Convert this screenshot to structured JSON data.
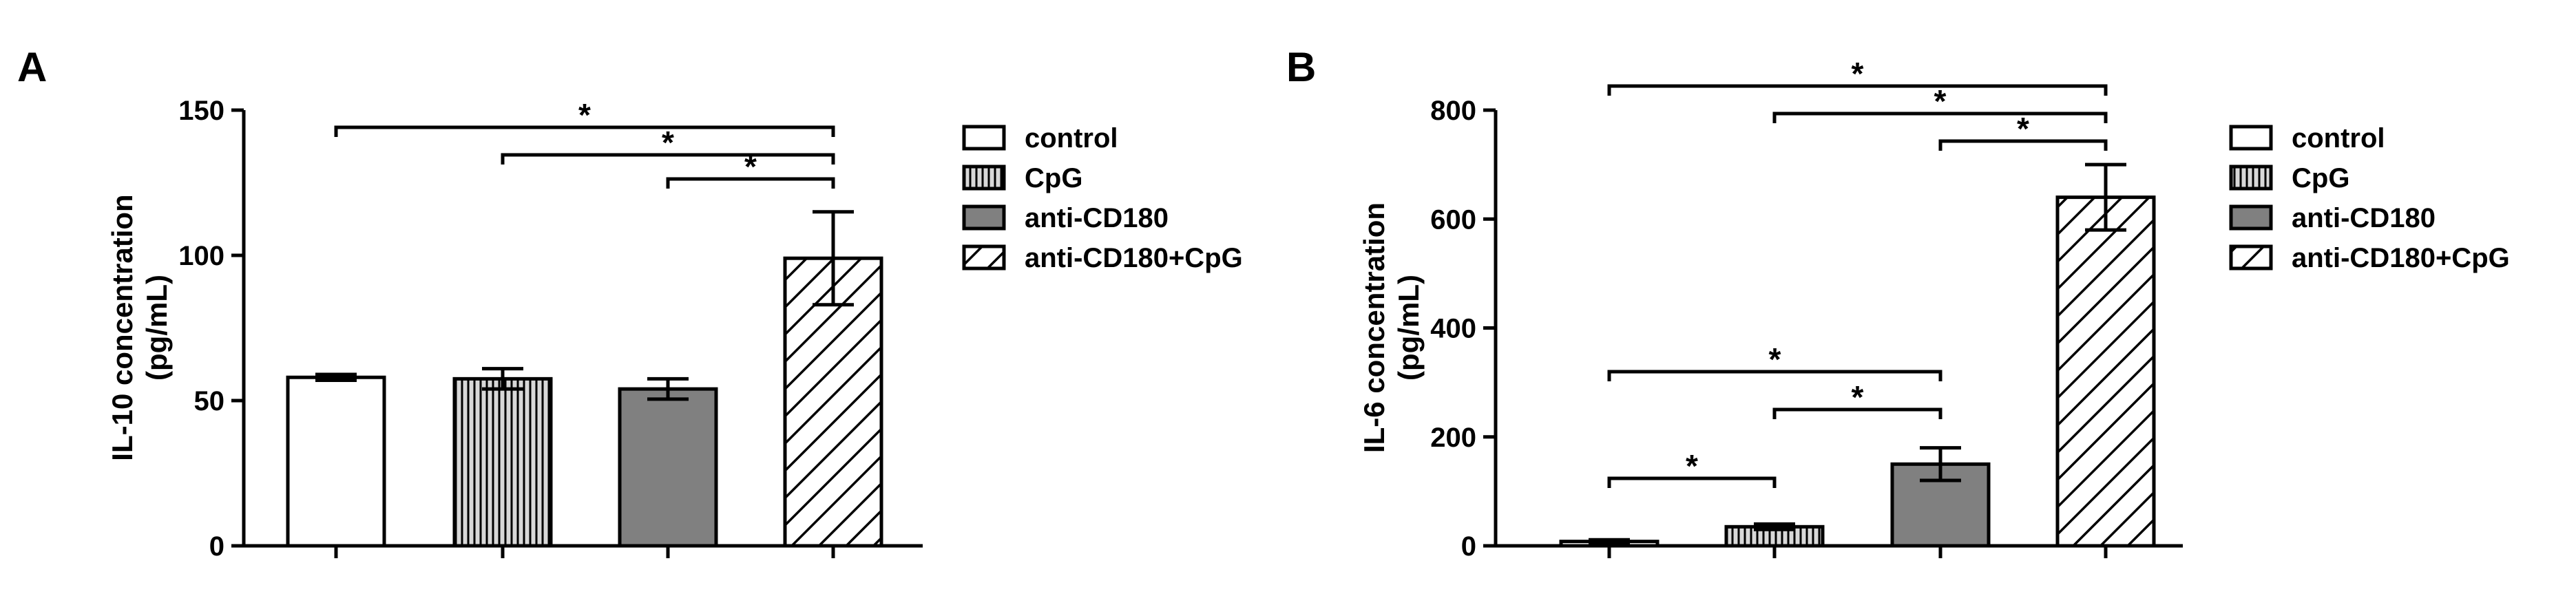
{
  "chart_data": [
    {
      "type": "bar",
      "panel": "A",
      "ylabel_line1": "IL-10 concentration",
      "ylabel_line2": "(pg/mL)",
      "ylim": [
        0,
        150
      ],
      "yticks": [
        "0",
        "50",
        "100",
        "150"
      ],
      "categories": [
        "control",
        "CpG",
        "anti-CD180",
        "anti-CD180+CpG"
      ],
      "values": [
        58,
        57.5,
        54,
        99
      ],
      "errors": [
        1,
        3.5,
        3.5,
        16
      ],
      "significance": [
        {
          "from": 0,
          "to": 3,
          "label": "*"
        },
        {
          "from": 1,
          "to": 3,
          "label": "*"
        },
        {
          "from": 2,
          "to": 3,
          "label": "*"
        }
      ],
      "legend": [
        "control",
        "CpG",
        "anti-CD180",
        "anti-CD180+CpG"
      ],
      "legend_position": "right",
      "grid": false
    },
    {
      "type": "bar",
      "panel": "B",
      "ylabel_line1": "IL-6 concentration",
      "ylabel_line2": "(pg/mL)",
      "ylim": [
        0,
        800
      ],
      "yticks": [
        "0",
        "200",
        "400",
        "600",
        "800"
      ],
      "categories": [
        "control",
        "CpG",
        "anti-CD180",
        "anti-CD180+CpG"
      ],
      "values": [
        8,
        35,
        150,
        640
      ],
      "errors": [
        3,
        5,
        30,
        60
      ],
      "significance": [
        {
          "from": 0,
          "to": 3,
          "label": "*"
        },
        {
          "from": 1,
          "to": 3,
          "label": "*"
        },
        {
          "from": 2,
          "to": 3,
          "label": "*"
        },
        {
          "from": 0,
          "to": 2,
          "label": "*"
        },
        {
          "from": 1,
          "to": 2,
          "label": "*"
        },
        {
          "from": 0,
          "to": 1,
          "label": "*"
        }
      ],
      "legend": [
        "control",
        "CpG",
        "anti-CD180",
        "anti-CD180+CpG"
      ],
      "legend_position": "right",
      "grid": false
    }
  ]
}
